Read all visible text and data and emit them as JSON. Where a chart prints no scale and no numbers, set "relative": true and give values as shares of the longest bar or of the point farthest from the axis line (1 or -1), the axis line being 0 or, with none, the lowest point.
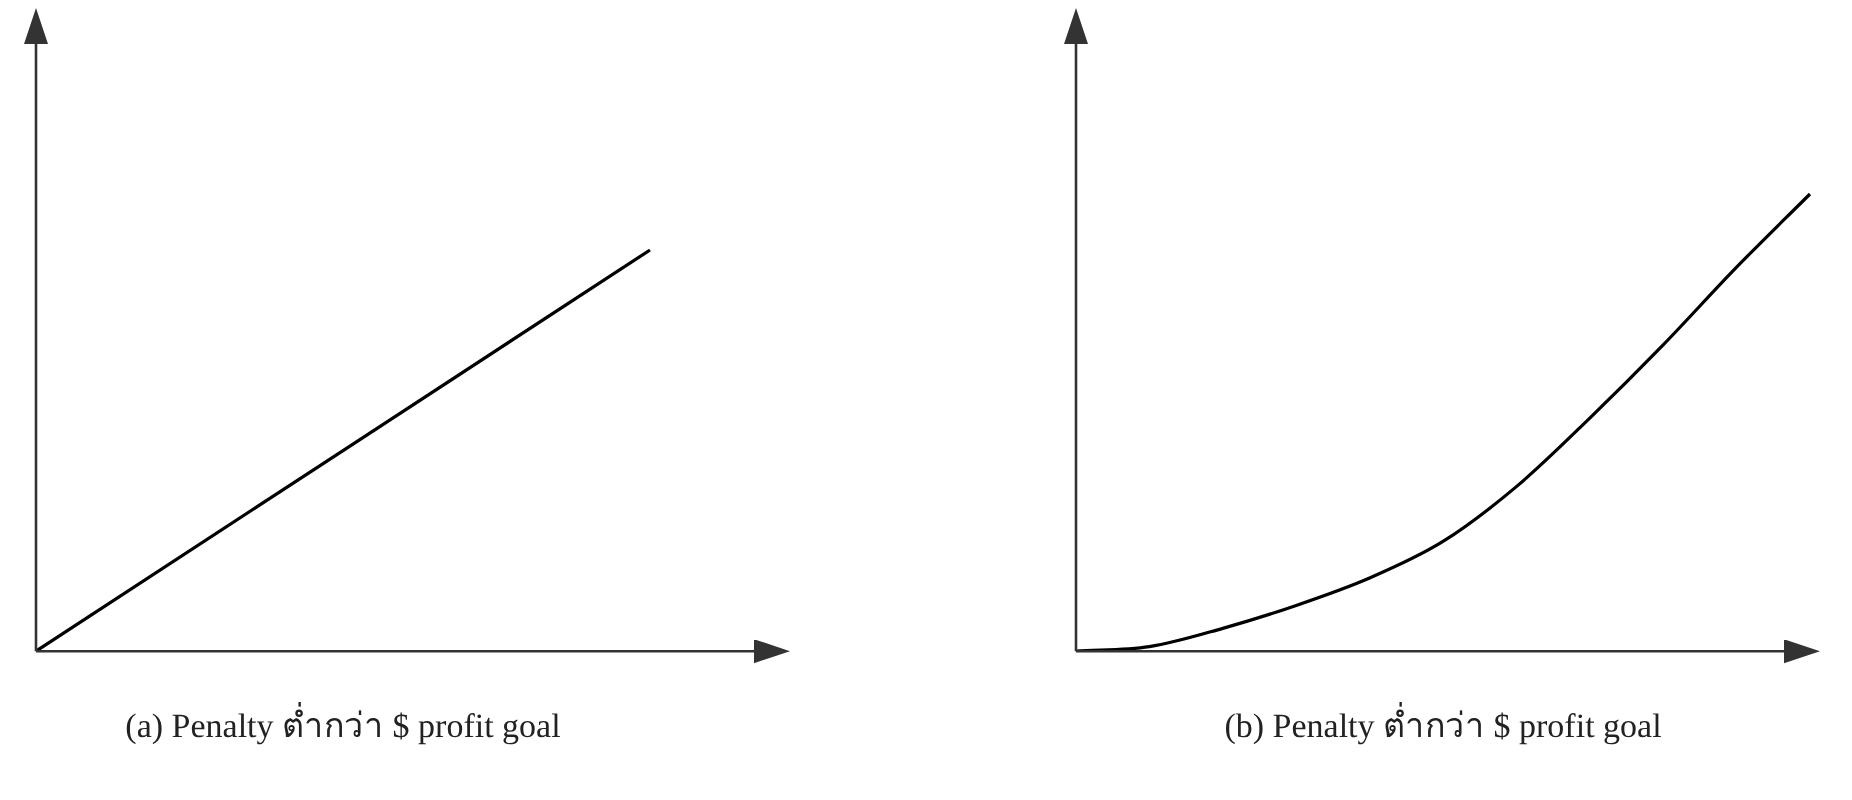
{
  "chart_data": [
    {
      "type": "line",
      "title": "(a) Penalty ต่ำกว่า $ profit goal",
      "relative": true,
      "categories": [
        null,
        null
      ],
      "values": [
        0,
        1
      ],
      "color": "#000000",
      "marker": "none"
    },
    {
      "type": "line",
      "title": "(b) Penalty ต่ำกว่า $ profit goal",
      "relative": true,
      "categories": [
        null,
        null,
        null,
        null,
        null,
        null,
        null,
        null,
        null,
        null,
        null
      ],
      "values": [
        0,
        0.01,
        0.05,
        0.1,
        0.16,
        0.24,
        0.36,
        0.51,
        0.67,
        0.84,
        1
      ],
      "color": "#000000",
      "marker": "none"
    }
  ]
}
